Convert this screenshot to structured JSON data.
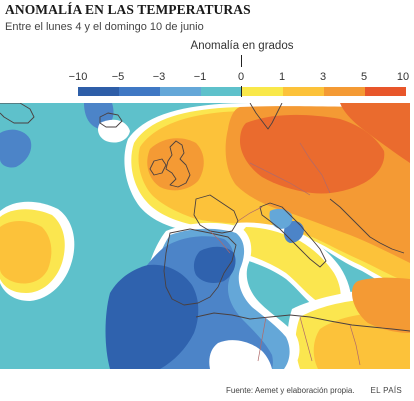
{
  "header": {
    "title": "ANOMALÍA EN LAS TEMPERATURAS",
    "subtitle": "Entre el lunes 4 y el domingo 10 de junio"
  },
  "legend": {
    "title": "Anomalía en grados",
    "ticks": [
      "−10",
      "−5",
      "−3",
      "−1",
      "0",
      "1",
      "3",
      "5",
      "10"
    ],
    "classes": [
      {
        "from": -10,
        "to": -5,
        "color": "#2e5ea8"
      },
      {
        "from": -5,
        "to": -3,
        "color": "#3f78c4"
      },
      {
        "from": -3,
        "to": -1,
        "color": "#64a7d8"
      },
      {
        "from": -1,
        "to": 0,
        "color": "#5ec1cb"
      },
      {
        "from": 0,
        "to": 1,
        "color": "#f9e84a"
      },
      {
        "from": 1,
        "to": 3,
        "color": "#fcc23a"
      },
      {
        "from": 3,
        "to": 5,
        "color": "#f49a34"
      },
      {
        "from": 5,
        "to": 10,
        "color": "#e8562a"
      }
    ]
  },
  "map": {
    "region": "Europa occidental y Atlántico norte",
    "colors": {
      "strong_cold": "#2f62ae",
      "cold": "#4c84c8",
      "cool": "#6fb6dc",
      "slightly_cool": "#5ec1cb",
      "neutral": "#ffffff",
      "slightly_warm": "#fbe64f",
      "warm": "#fcc23a",
      "hot": "#f49a34",
      "very_hot": "#ea6b2e",
      "coastline": "#4a4040",
      "border": "#b06a6a"
    }
  },
  "footer": {
    "source": "Fuente: Aemet y elaboración propia.",
    "brand": "EL PAÍS"
  }
}
